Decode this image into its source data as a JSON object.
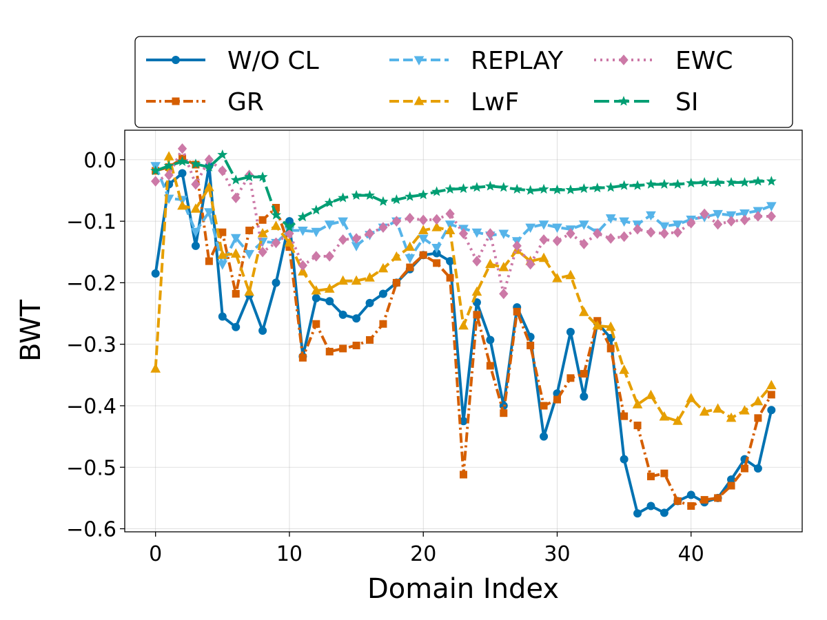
{
  "chart_data": {
    "type": "line",
    "title": "",
    "xlabel": "Domain Index",
    "ylabel": "BWT",
    "xlim": [
      -2.3,
      48.3
    ],
    "ylim": [
      -0.605,
      0.048
    ],
    "xticks": [
      0,
      10,
      20,
      30,
      40
    ],
    "yticks": [
      0.0,
      -0.1,
      -0.2,
      -0.3,
      -0.4,
      -0.5,
      -0.6
    ],
    "ytick_labels": [
      "0.0",
      "−0.1",
      "−0.2",
      "−0.3",
      "−0.4",
      "−0.5",
      "−0.6"
    ],
    "grid": true,
    "legend_position": "top",
    "x": [
      0,
      1,
      2,
      3,
      4,
      5,
      6,
      7,
      8,
      9,
      10,
      11,
      12,
      13,
      14,
      15,
      16,
      17,
      18,
      19,
      20,
      21,
      22,
      23,
      24,
      25,
      26,
      27,
      28,
      29,
      30,
      31,
      32,
      33,
      34,
      35,
      36,
      37,
      38,
      39,
      40,
      41,
      42,
      43,
      44,
      45,
      46
    ],
    "series": [
      {
        "name": "W/O CL",
        "color": "#0072b2",
        "dash": "solid",
        "marker": "circle",
        "values": [
          -0.185,
          -0.04,
          -0.022,
          -0.14,
          -0.01,
          -0.255,
          -0.272,
          -0.22,
          -0.278,
          -0.2,
          -0.1,
          -0.32,
          -0.225,
          -0.23,
          -0.252,
          -0.258,
          -0.233,
          -0.218,
          -0.2,
          -0.178,
          -0.155,
          -0.152,
          -0.165,
          -0.425,
          -0.232,
          -0.293,
          -0.4,
          -0.24,
          -0.288,
          -0.45,
          -0.38,
          -0.28,
          -0.385,
          -0.265,
          -0.29,
          -0.487,
          -0.575,
          -0.563,
          -0.574,
          -0.555,
          -0.545,
          -0.557,
          -0.55,
          -0.52,
          -0.487,
          -0.502,
          -0.407
        ]
      },
      {
        "name": "GR",
        "color": "#d55e00",
        "dash": "dashdot",
        "marker": "square",
        "values": [
          -0.018,
          -0.012,
          0.002,
          -0.008,
          -0.165,
          -0.118,
          -0.218,
          -0.115,
          -0.098,
          -0.078,
          -0.142,
          -0.322,
          -0.267,
          -0.312,
          -0.307,
          -0.302,
          -0.293,
          -0.267,
          -0.2,
          -0.175,
          -0.155,
          -0.168,
          -0.192,
          -0.512,
          -0.252,
          -0.335,
          -0.412,
          -0.247,
          -0.302,
          -0.4,
          -0.39,
          -0.355,
          -0.348,
          -0.262,
          -0.307,
          -0.417,
          -0.432,
          -0.515,
          -0.51,
          -0.555,
          -0.563,
          -0.553,
          -0.55,
          -0.53,
          -0.502,
          -0.42,
          -0.382
        ]
      },
      {
        "name": "REPLAY",
        "color": "#56b4e9",
        "dash": "dashed",
        "marker": "triangle-down",
        "values": [
          -0.01,
          -0.063,
          -0.065,
          -0.117,
          -0.085,
          -0.17,
          -0.127,
          -0.153,
          -0.133,
          -0.135,
          -0.115,
          -0.115,
          -0.117,
          -0.105,
          -0.1,
          -0.14,
          -0.122,
          -0.11,
          -0.1,
          -0.16,
          -0.128,
          -0.143,
          -0.105,
          -0.112,
          -0.118,
          -0.123,
          -0.12,
          -0.132,
          -0.11,
          -0.105,
          -0.11,
          -0.113,
          -0.105,
          -0.118,
          -0.095,
          -0.1,
          -0.105,
          -0.09,
          -0.108,
          -0.105,
          -0.097,
          -0.093,
          -0.088,
          -0.09,
          -0.087,
          -0.083,
          -0.075
        ]
      },
      {
        "name": "LwF",
        "color": "#e69f00",
        "dash": "dashed",
        "marker": "triangle-up",
        "values": [
          -0.34,
          0.005,
          -0.075,
          -0.08,
          -0.045,
          -0.155,
          -0.153,
          -0.215,
          -0.12,
          -0.108,
          -0.135,
          -0.182,
          -0.213,
          -0.21,
          -0.197,
          -0.197,
          -0.192,
          -0.177,
          -0.158,
          -0.142,
          -0.115,
          -0.11,
          -0.115,
          -0.27,
          -0.215,
          -0.17,
          -0.175,
          -0.147,
          -0.165,
          -0.16,
          -0.193,
          -0.188,
          -0.248,
          -0.27,
          -0.272,
          -0.342,
          -0.398,
          -0.383,
          -0.418,
          -0.425,
          -0.388,
          -0.41,
          -0.405,
          -0.42,
          -0.408,
          -0.393,
          -0.367
        ]
      },
      {
        "name": "EWC",
        "color": "#cc79a7",
        "dash": "dotted",
        "marker": "diamond",
        "values": [
          -0.035,
          -0.025,
          0.018,
          -0.04,
          0.0,
          -0.018,
          -0.062,
          -0.025,
          -0.15,
          -0.135,
          -0.12,
          -0.172,
          -0.157,
          -0.157,
          -0.13,
          -0.128,
          -0.12,
          -0.11,
          -0.1,
          -0.095,
          -0.098,
          -0.097,
          -0.088,
          -0.12,
          -0.165,
          -0.12,
          -0.218,
          -0.14,
          -0.17,
          -0.13,
          -0.132,
          -0.12,
          -0.137,
          -0.12,
          -0.128,
          -0.125,
          -0.113,
          -0.118,
          -0.12,
          -0.118,
          -0.103,
          -0.088,
          -0.105,
          -0.1,
          -0.098,
          -0.092,
          -0.092
        ]
      },
      {
        "name": "SI",
        "color": "#009e73",
        "dash": "longdash",
        "marker": "star",
        "values": [
          -0.018,
          -0.01,
          -0.003,
          -0.007,
          -0.012,
          0.008,
          -0.033,
          -0.028,
          -0.028,
          -0.09,
          -0.11,
          -0.093,
          -0.082,
          -0.07,
          -0.062,
          -0.058,
          -0.058,
          -0.068,
          -0.065,
          -0.06,
          -0.057,
          -0.052,
          -0.048,
          -0.047,
          -0.045,
          -0.043,
          -0.045,
          -0.048,
          -0.05,
          -0.048,
          -0.049,
          -0.049,
          -0.047,
          -0.046,
          -0.045,
          -0.042,
          -0.042,
          -0.04,
          -0.04,
          -0.04,
          -0.038,
          -0.037,
          -0.037,
          -0.037,
          -0.037,
          -0.035,
          -0.035
        ]
      }
    ]
  }
}
